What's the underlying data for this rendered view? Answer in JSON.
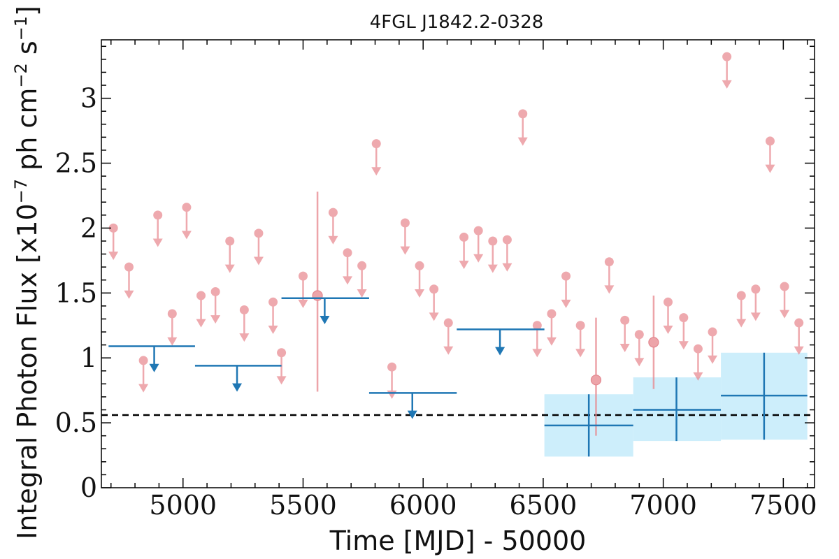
{
  "chart_data": {
    "type": "scatter",
    "title": "4FGL J1842.2-0328",
    "xlabel": "Time [MJD] - 50000",
    "ylabel": {
      "prefix": "Integral Photon Flux [x10",
      "exp1": "−7",
      "mid1": " ph cm",
      "exp2": "−2",
      "mid2": " s",
      "exp3": "−1",
      "suffix": "]"
    },
    "xlim": [
      4660,
      7630
    ],
    "ylim": [
      0,
      3.45
    ],
    "xticks": [
      5000,
      5500,
      6000,
      6500,
      7000,
      7500
    ],
    "xtick_labels": [
      "5000",
      "5500",
      "6000",
      "6500",
      "7000",
      "7500"
    ],
    "yticks": [
      0,
      0.5,
      1,
      1.5,
      2,
      2.5,
      3
    ],
    "ytick_labels": [
      "0",
      "0.5",
      "1",
      "1.5",
      "2",
      "2.5",
      "3"
    ],
    "grid": false,
    "reference_line": {
      "y": 0.56,
      "style": "dashed"
    },
    "colors": {
      "fine_bins": "#e8868d",
      "coarse_bins": "#1f77b4",
      "band_fill": "#cdeefb",
      "reference": "#000000"
    },
    "fine_upper_limits": [
      {
        "x": 4710,
        "y": 2.0
      },
      {
        "x": 4775,
        "y": 1.7
      },
      {
        "x": 4835,
        "y": 0.98
      },
      {
        "x": 4895,
        "y": 2.1
      },
      {
        "x": 4955,
        "y": 1.34
      },
      {
        "x": 5015,
        "y": 2.16
      },
      {
        "x": 5075,
        "y": 1.48
      },
      {
        "x": 5135,
        "y": 1.51
      },
      {
        "x": 5195,
        "y": 1.9
      },
      {
        "x": 5255,
        "y": 1.37
      },
      {
        "x": 5315,
        "y": 1.96
      },
      {
        "x": 5375,
        "y": 1.43
      },
      {
        "x": 5410,
        "y": 1.04
      },
      {
        "x": 5500,
        "y": 1.63
      },
      {
        "x": 5625,
        "y": 2.12
      },
      {
        "x": 5685,
        "y": 1.81
      },
      {
        "x": 5745,
        "y": 1.71
      },
      {
        "x": 5805,
        "y": 2.65
      },
      {
        "x": 5870,
        "y": 0.93
      },
      {
        "x": 5925,
        "y": 2.04
      },
      {
        "x": 5985,
        "y": 1.71
      },
      {
        "x": 6045,
        "y": 1.53
      },
      {
        "x": 6105,
        "y": 1.27
      },
      {
        "x": 6170,
        "y": 1.93
      },
      {
        "x": 6230,
        "y": 1.98
      },
      {
        "x": 6290,
        "y": 1.9
      },
      {
        "x": 6350,
        "y": 1.91
      },
      {
        "x": 6415,
        "y": 2.88
      },
      {
        "x": 6475,
        "y": 1.25
      },
      {
        "x": 6535,
        "y": 1.34
      },
      {
        "x": 6595,
        "y": 1.63
      },
      {
        "x": 6655,
        "y": 1.25
      },
      {
        "x": 6775,
        "y": 1.74
      },
      {
        "x": 6840,
        "y": 1.29
      },
      {
        "x": 6900,
        "y": 1.18
      },
      {
        "x": 7020,
        "y": 1.43
      },
      {
        "x": 7085,
        "y": 1.31
      },
      {
        "x": 7145,
        "y": 1.07
      },
      {
        "x": 7205,
        "y": 1.2
      },
      {
        "x": 7265,
        "y": 3.32
      },
      {
        "x": 7325,
        "y": 1.48
      },
      {
        "x": 7385,
        "y": 1.53
      },
      {
        "x": 7445,
        "y": 2.67
      },
      {
        "x": 7505,
        "y": 1.55
      },
      {
        "x": 7565,
        "y": 1.27
      }
    ],
    "fine_detections": [
      {
        "x": 5560,
        "y": 1.48,
        "ylo": 0.74,
        "yhi": 2.28
      },
      {
        "x": 6720,
        "y": 0.83,
        "ylo": 0.4,
        "yhi": 1.31
      },
      {
        "x": 6960,
        "y": 1.12,
        "ylo": 0.76,
        "yhi": 1.48
      }
    ],
    "coarse_upper_limits": [
      {
        "x": 4880,
        "x0": 4690,
        "x1": 5050,
        "y": 1.09
      },
      {
        "x": 5225,
        "x0": 5050,
        "x1": 5410,
        "y": 0.94
      },
      {
        "x": 5590,
        "x0": 5410,
        "x1": 5775,
        "y": 1.46
      },
      {
        "x": 5955,
        "x0": 5775,
        "x1": 6140,
        "y": 0.73
      },
      {
        "x": 6320,
        "x0": 6140,
        "x1": 6505,
        "y": 1.22
      }
    ],
    "coarse_detections": [
      {
        "x": 6690,
        "x0": 6505,
        "x1": 6875,
        "y": 0.48,
        "ylo": 0.24,
        "yhi": 0.72
      },
      {
        "x": 7055,
        "x0": 6875,
        "x1": 7240,
        "y": 0.6,
        "ylo": 0.36,
        "yhi": 0.85
      },
      {
        "x": 7420,
        "x0": 7240,
        "x1": 7600,
        "y": 0.71,
        "ylo": 0.37,
        "yhi": 1.04
      }
    ]
  }
}
